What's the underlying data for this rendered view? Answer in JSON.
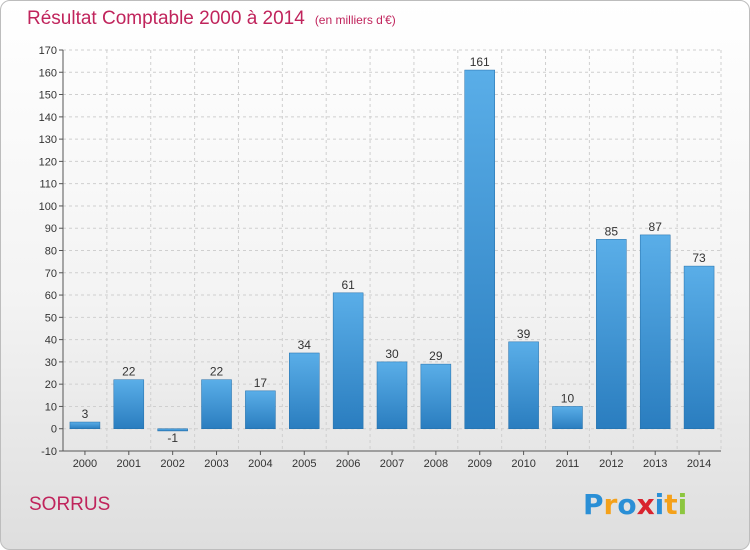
{
  "header": {
    "title": "Résultat Comptable 2000 à 2014",
    "subtitle": "(en milliers d'€)"
  },
  "footer": {
    "place": "SORRUS",
    "brand": "Proxiti",
    "brand_letters": [
      {
        "ch": "P",
        "color": "#2a8fd6"
      },
      {
        "ch": "r",
        "color": "#f4a11a"
      },
      {
        "ch": "o",
        "color": "#2a8fd6"
      },
      {
        "ch": "x",
        "color": "#d9232e"
      },
      {
        "ch": "i",
        "color": "#2a8fd6"
      },
      {
        "ch": "t",
        "color": "#f4a11a"
      },
      {
        "ch": "i",
        "color": "#8cc63f"
      }
    ]
  },
  "colors": {
    "bar_light": "#5aaee8",
    "bar_dark": "#2a7dbf",
    "title": "#c0245c",
    "grid": "#cfcfcf"
  },
  "chart_data": {
    "type": "bar",
    "title": "Résultat Comptable 2000 à 2014",
    "subtitle": "(en milliers d'€)",
    "categories": [
      "2000",
      "2001",
      "2002",
      "2003",
      "2004",
      "2005",
      "2006",
      "2007",
      "2008",
      "2009",
      "2010",
      "2011",
      "2012",
      "2013",
      "2014"
    ],
    "values": [
      3,
      22,
      -1,
      22,
      17,
      34,
      61,
      30,
      29,
      161,
      39,
      10,
      85,
      87,
      73
    ],
    "ylim": [
      -10,
      170
    ],
    "yticks": [
      -10,
      0,
      10,
      20,
      30,
      40,
      50,
      60,
      70,
      80,
      90,
      100,
      110,
      120,
      130,
      140,
      150,
      160,
      170
    ],
    "grid": true,
    "xlabel": "",
    "ylabel": ""
  }
}
